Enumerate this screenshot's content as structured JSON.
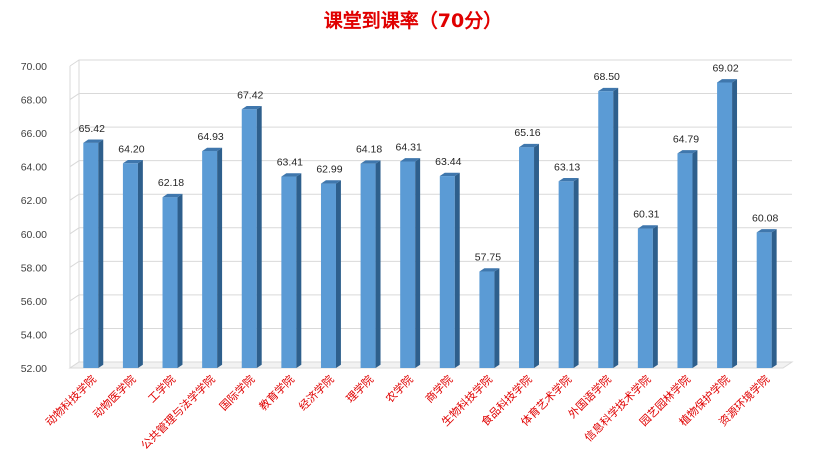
{
  "chart_data": {
    "type": "bar",
    "title": "课堂到课率（70分）",
    "categories": [
      "动物科技学院",
      "动物医学院",
      "工学院",
      "公共管理与法学学院",
      "国际学院",
      "教育学院",
      "经济学院",
      "理学院",
      "农学院",
      "商学院",
      "生物科技学院",
      "食品科技学院",
      "体育艺术学院",
      "外国语学院",
      "信息科学技术学院",
      "园艺园林学院",
      "植物保护学院",
      "资源环境学院"
    ],
    "values": [
      65.42,
      64.2,
      62.18,
      64.93,
      67.42,
      63.41,
      62.99,
      64.18,
      64.31,
      63.44,
      57.75,
      65.16,
      63.13,
      68.5,
      60.31,
      64.79,
      69.02,
      60.08
    ],
    "value_labels": [
      "65.42",
      "64.20",
      "62.18",
      "64.93",
      "67.42",
      "63.41",
      "62.99",
      "64.18",
      "64.31",
      "63.44",
      "57.75",
      "65.16",
      "63.13",
      "68.50",
      "60.31",
      "64.79",
      "69.02",
      "60.08"
    ],
    "yticks": [
      "52.00",
      "54.00",
      "56.00",
      "58.00",
      "60.00",
      "62.00",
      "64.00",
      "66.00",
      "68.00",
      "70.00"
    ],
    "ylim": [
      52,
      70
    ],
    "grid": true,
    "colors": {
      "bar_front": "#5b9bd5",
      "bar_side": "#2e5f8c",
      "bar_top": "#3f77ad",
      "title": "#e00000",
      "category_label": "#e00000"
    }
  }
}
